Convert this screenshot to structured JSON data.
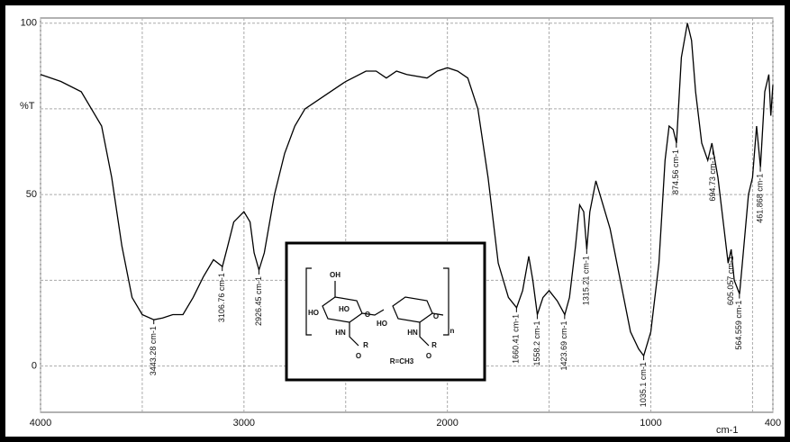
{
  "chart_data": {
    "type": "line",
    "ylabel": "%T",
    "xlabel": "cm-1",
    "color": "#000000",
    "xlim": [
      4000,
      400
    ],
    "xticks": [
      4000,
      3000,
      2000,
      1000,
      400
    ],
    "minor_xticks": [
      3500,
      2500,
      1500,
      500
    ],
    "ylim": [
      -13.5,
      101.5
    ],
    "yticks": [
      0,
      50,
      100
    ],
    "minor_yticks": [
      25,
      75
    ],
    "grid": true,
    "x": [
      4000,
      3900,
      3800,
      3700,
      3650,
      3600,
      3550,
      3500,
      3443,
      3400,
      3350,
      3300,
      3250,
      3200,
      3150,
      3106,
      3080,
      3050,
      3000,
      2970,
      2950,
      2926,
      2900,
      2850,
      2800,
      2750,
      2700,
      2600,
      2500,
      2400,
      2350,
      2300,
      2250,
      2200,
      2100,
      2050,
      2000,
      1950,
      1900,
      1850,
      1800,
      1750,
      1700,
      1660,
      1630,
      1600,
      1580,
      1558,
      1530,
      1500,
      1460,
      1423,
      1400,
      1370,
      1350,
      1330,
      1315,
      1300,
      1270,
      1250,
      1200,
      1150,
      1100,
      1060,
      1035,
      1000,
      960,
      930,
      910,
      890,
      874,
      850,
      820,
      800,
      780,
      750,
      720,
      700,
      694,
      670,
      640,
      620,
      605,
      590,
      564,
      550,
      520,
      500,
      480,
      461,
      440,
      420,
      410,
      400
    ],
    "values": [
      85,
      83,
      80,
      70,
      55,
      35,
      20,
      15,
      13.5,
      14,
      15,
      15,
      20,
      26,
      31,
      29,
      35,
      42,
      45,
      42,
      33,
      28,
      33,
      50,
      62,
      70,
      75,
      79,
      83,
      86,
      86,
      84,
      86,
      85,
      84,
      86,
      87,
      86,
      84,
      75,
      55,
      30,
      20,
      17,
      22,
      32,
      25,
      15,
      20,
      22,
      19,
      15,
      20,
      35,
      47,
      45,
      34,
      45,
      54,
      50,
      40,
      25,
      10,
      5,
      3,
      10,
      30,
      60,
      70,
      69,
      65,
      90,
      100,
      95,
      80,
      65,
      60,
      65,
      63,
      55,
      40,
      30,
      34,
      25,
      21,
      30,
      50,
      55,
      70,
      58,
      80,
      85,
      73,
      82
    ],
    "annotations": [
      {
        "x": 3443.28,
        "y": 13.5,
        "text": "3443.28 cm-1"
      },
      {
        "x": 3106.76,
        "y": 29,
        "text": "3106.76 cm-1"
      },
      {
        "x": 2926.45,
        "y": 28,
        "text": "2926.45 cm-1"
      },
      {
        "x": 1660.41,
        "y": 17,
        "text": "1660.41 cm-1"
      },
      {
        "x": 1558.2,
        "y": 15,
        "text": "1558.2 cm-1"
      },
      {
        "x": 1423.69,
        "y": 15,
        "text": "1423.69 cm-1"
      },
      {
        "x": 1315.21,
        "y": 34,
        "text": "1315.21 cm-1"
      },
      {
        "x": 1035.1,
        "y": 3,
        "text": "1035.1 cm-1"
      },
      {
        "x": 874.56,
        "y": 65,
        "text": "874.56 cm-1"
      },
      {
        "x": 694.73,
        "y": 63,
        "text": "694.73 cm-1"
      },
      {
        "x": 605.057,
        "y": 34,
        "text": "605.057 cm-1"
      },
      {
        "x": 564.559,
        "y": 21,
        "text": "564.559 cm-1"
      },
      {
        "x": 461.868,
        "y": 58,
        "text": "461.868 cm-1"
      }
    ],
    "inset_labels": [
      "OH",
      "HO",
      "HO",
      "O",
      "HN",
      "R",
      "O",
      "HO",
      "O",
      "HN",
      "R",
      "O",
      "n",
      "R=CH3"
    ]
  }
}
